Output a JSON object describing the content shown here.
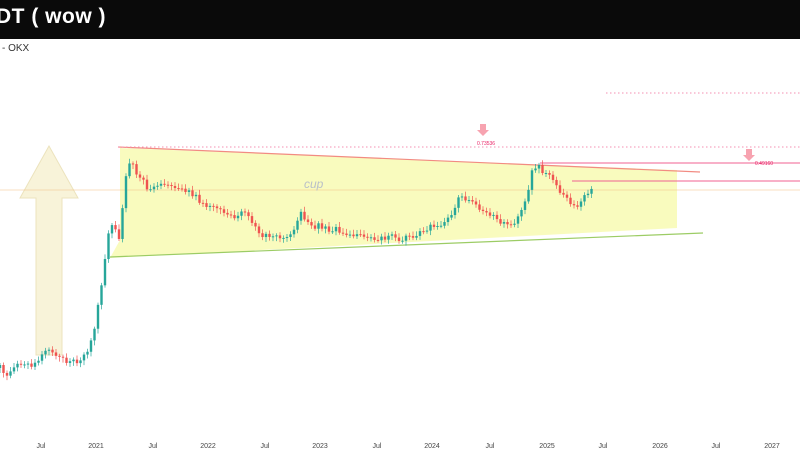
{
  "title_bar": {
    "title": "DT ( wow )"
  },
  "source": {
    "label": "- OKX"
  },
  "chart_data": {
    "type": "candlestick",
    "title": "DT ( wow )",
    "exchange": "OKX",
    "time_axis_labels": [
      "Jul",
      "2021",
      "Jul",
      "2022",
      "Jul",
      "2023",
      "Jul",
      "2024",
      "Jul",
      "2025",
      "Jul",
      "2026",
      "Jul",
      "2027"
    ],
    "annotations": {
      "pattern_text": "cup",
      "price_labels": [
        "0.73536",
        "0.49160"
      ]
    },
    "colors": {
      "up": "#26a69a",
      "down": "#ef5350",
      "resistance_line": "#f28b82",
      "support_line": "#9ccc65",
      "pattern_fill": "#f7f9a8",
      "arrow_fill": "#f6f0cf",
      "level_line": "#f06292",
      "label_text": "#e91e63"
    }
  }
}
